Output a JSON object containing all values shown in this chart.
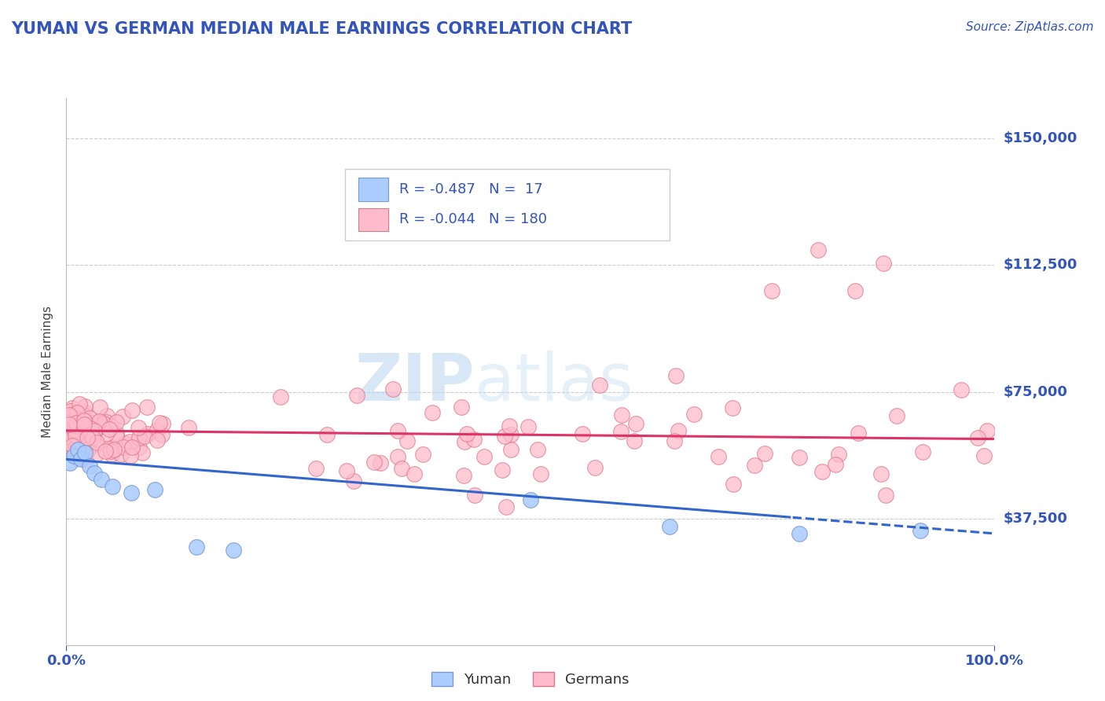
{
  "title": "YUMAN VS GERMAN MEDIAN MALE EARNINGS CORRELATION CHART",
  "source": "Source: ZipAtlas.com",
  "ylabel": "Median Male Earnings",
  "xlim": [
    0.0,
    100.0
  ],
  "ylim": [
    0,
    162000
  ],
  "ytick_vals": [
    37500,
    75000,
    112500,
    150000
  ],
  "ytick_labels": [
    "$37,500",
    "$75,000",
    "$112,500",
    "$150,000"
  ],
  "xtick_vals": [
    0,
    100
  ],
  "xtick_labels": [
    "0.0%",
    "100.0%"
  ],
  "bg_color": "#ffffff",
  "grid_color": "#cccccc",
  "title_color": "#3355bb",
  "source_color": "#3355bb",
  "yuman_color": "#aaccff",
  "yuman_edge": "#7799cc",
  "german_color": "#ffbbcc",
  "german_edge": "#dd7788",
  "yuman_line_color": "#3366cc",
  "german_line_color": "#dd3366",
  "watermark_color": "#d8eaf8",
  "legend_border": "#cccccc",
  "legend_text_color": "#3355bb"
}
